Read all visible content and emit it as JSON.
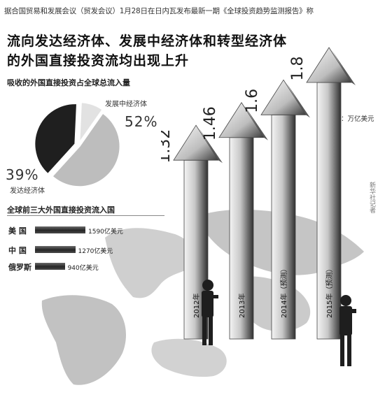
{
  "header": {
    "source_line": "据合国贸易和发展会议（贸发会议）1月28日在日内瓦发布最新一期《全球投资趋势监测报告》称"
  },
  "headline": {
    "line1": "流向发达经济体、发展中经济体和转型经济体",
    "line2": "的外国直接投资流均出现上升"
  },
  "pie": {
    "title": "吸收的外国直接投资占全球总流入量",
    "developing_label": "发展中经济体",
    "developing_pct": "52%",
    "developed_pct": "39%",
    "developed_label": "发达经济体"
  },
  "top3": {
    "title": "全球前三大外国直接投资流入国",
    "rows": [
      {
        "country": "美 国",
        "value_label": "1590亿美元"
      },
      {
        "country": "中 国",
        "value_label": "1270亿美元"
      },
      {
        "country": "俄罗斯",
        "value_label": "940亿美元"
      }
    ]
  },
  "unit": "单位：万亿美元",
  "side_text": "新华社记者",
  "colors": {
    "arrow_light": "#e8e8e8",
    "arrow_dark": "#3a3a3a",
    "map": "#c9c9c9",
    "bar_dark": "#2a2a2a"
  },
  "chart_data": [
    {
      "type": "bar",
      "categories": [
        "2012年",
        "2013年",
        "2014年（预测）",
        "2015年（预测）"
      ],
      "values": [
        1.32,
        1.46,
        1.6,
        1.8
      ],
      "data_labels": [
        "1.32",
        "1.46",
        "1.6",
        "1.8"
      ],
      "unit": "单位：万亿美元",
      "ylim": [
        0,
        1.8
      ],
      "style": "3D arrows"
    },
    {
      "type": "pie",
      "title": "吸收的外国直接投资占全球总流入量",
      "categories": [
        "发展中经济体",
        "发达经济体"
      ],
      "values": [
        52,
        39
      ],
      "value_labels": [
        "52%",
        "39%"
      ]
    },
    {
      "type": "bar",
      "orientation": "horizontal",
      "title": "全球前三大外国直接投资流入国",
      "categories": [
        "美 国",
        "中 国",
        "俄罗斯"
      ],
      "values": [
        1590,
        1270,
        940
      ],
      "value_labels": [
        "1590亿美元",
        "1270亿美元",
        "940亿美元"
      ]
    }
  ]
}
